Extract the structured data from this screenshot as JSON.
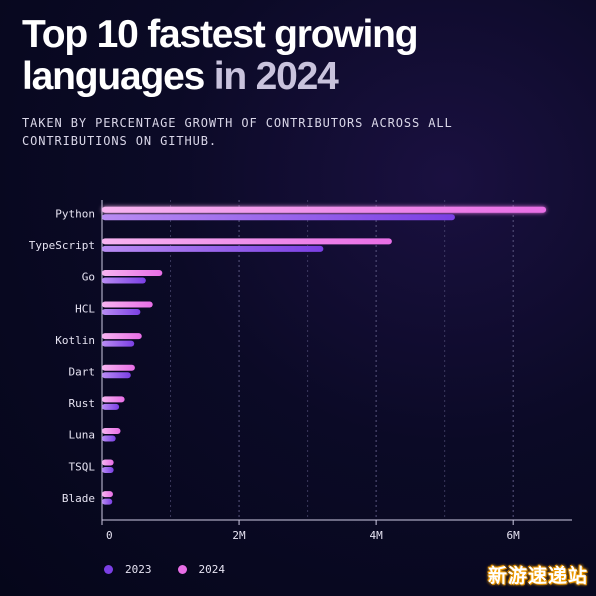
{
  "title": {
    "line1": "Top 10 fastest growing",
    "line2_main": "languages",
    "line2_accent": "in 2024"
  },
  "subtitle": "TAKEN BY PERCENTAGE GROWTH OF CONTRIBUTORS ACROSS ALL CONTRIBUTIONS ON GITHUB.",
  "watermark": "新游速递站",
  "colors": {
    "series_2023": "#7b3fe4",
    "series_2024": "#e86ee6",
    "grid": "#5a5680",
    "axis": "#cfcbe4",
    "label": "#e6e3f2"
  },
  "chart_data": {
    "type": "bar",
    "orientation": "horizontal",
    "categories": [
      "Python",
      "TypeScript",
      "Go",
      "HCL",
      "Kotlin",
      "Dart",
      "Rust",
      "Luna",
      "TSQL",
      "Blade"
    ],
    "series": [
      {
        "name": "2023",
        "values": [
          5150000,
          3230000,
          640000,
          560000,
          470000,
          420000,
          250000,
          200000,
          170000,
          150000
        ]
      },
      {
        "name": "2024",
        "values": [
          6480000,
          4230000,
          880000,
          740000,
          580000,
          480000,
          330000,
          270000,
          170000,
          160000
        ]
      }
    ],
    "x_ticks": [
      0,
      2000000,
      4000000,
      6000000
    ],
    "x_tick_labels": [
      "0",
      "2M",
      "4M",
      "6M"
    ],
    "xlim": [
      0,
      6800000
    ],
    "grid": true,
    "legend_position": "bottom-left"
  }
}
